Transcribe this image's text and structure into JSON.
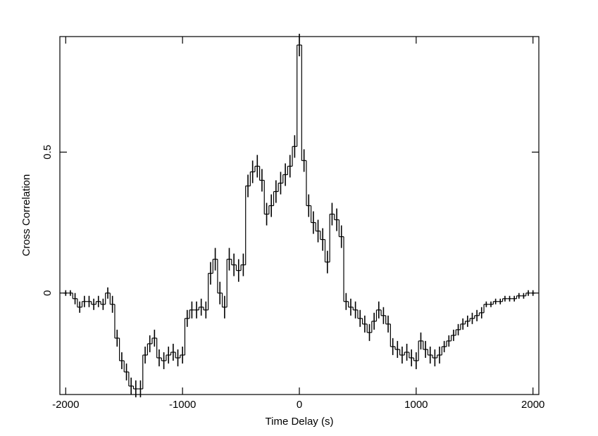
{
  "chart_data": {
    "type": "step",
    "xlabel": "Time Delay (s)",
    "ylabel": "Cross Correlation",
    "xlim": [
      -2050,
      2050
    ],
    "ylim": [
      -0.36,
      0.91
    ],
    "xticks": [
      -2000,
      -1000,
      0,
      1000,
      2000
    ],
    "yticks": [
      0,
      0.5
    ],
    "color": "#000000",
    "x": [
      -2000,
      -1960,
      -1920,
      -1880,
      -1840,
      -1800,
      -1760,
      -1720,
      -1680,
      -1640,
      -1600,
      -1560,
      -1520,
      -1480,
      -1440,
      -1400,
      -1360,
      -1320,
      -1280,
      -1240,
      -1200,
      -1160,
      -1120,
      -1080,
      -1040,
      -1000,
      -960,
      -920,
      -880,
      -840,
      -800,
      -760,
      -720,
      -680,
      -640,
      -600,
      -560,
      -520,
      -480,
      -440,
      -400,
      -360,
      -320,
      -280,
      -240,
      -200,
      -160,
      -120,
      -80,
      -40,
      0,
      40,
      80,
      120,
      160,
      200,
      240,
      280,
      320,
      360,
      400,
      440,
      480,
      520,
      560,
      600,
      640,
      680,
      720,
      760,
      800,
      840,
      880,
      920,
      960,
      1000,
      1040,
      1080,
      1120,
      1160,
      1200,
      1240,
      1280,
      1320,
      1360,
      1400,
      1440,
      1480,
      1520,
      1560,
      1600,
      1640,
      1680,
      1720,
      1760,
      1800,
      1840,
      1880,
      1920,
      1960,
      2000
    ],
    "values": [
      0.0,
      0.0,
      -0.02,
      -0.05,
      -0.03,
      -0.03,
      -0.04,
      -0.03,
      -0.04,
      0.0,
      -0.04,
      -0.16,
      -0.24,
      -0.28,
      -0.33,
      -0.34,
      -0.34,
      -0.22,
      -0.18,
      -0.16,
      -0.23,
      -0.24,
      -0.22,
      -0.21,
      -0.23,
      -0.22,
      -0.09,
      -0.06,
      -0.06,
      -0.05,
      -0.06,
      0.07,
      0.12,
      0.0,
      -0.05,
      0.12,
      0.1,
      0.08,
      0.1,
      0.38,
      0.43,
      0.45,
      0.4,
      0.28,
      0.31,
      0.36,
      0.39,
      0.42,
      0.45,
      0.52,
      0.88,
      0.47,
      0.31,
      0.25,
      0.22,
      0.19,
      0.11,
      0.28,
      0.26,
      0.2,
      -0.03,
      -0.05,
      -0.06,
      -0.09,
      -0.11,
      -0.14,
      -0.1,
      -0.06,
      -0.08,
      -0.11,
      -0.19,
      -0.2,
      -0.22,
      -0.21,
      -0.23,
      -0.24,
      -0.17,
      -0.2,
      -0.22,
      -0.23,
      -0.22,
      -0.19,
      -0.17,
      -0.15,
      -0.13,
      -0.11,
      -0.1,
      -0.09,
      -0.08,
      -0.07,
      -0.04,
      -0.04,
      -0.03,
      -0.03,
      -0.02,
      -0.02,
      -0.02,
      -0.01,
      -0.01,
      0.0,
      0.0
    ],
    "errors": [
      0.01,
      0.01,
      0.02,
      0.02,
      0.02,
      0.02,
      0.02,
      0.02,
      0.02,
      0.02,
      0.03,
      0.03,
      0.03,
      0.03,
      0.03,
      0.03,
      0.03,
      0.03,
      0.03,
      0.03,
      0.03,
      0.03,
      0.03,
      0.03,
      0.03,
      0.03,
      0.03,
      0.03,
      0.03,
      0.03,
      0.03,
      0.04,
      0.04,
      0.04,
      0.04,
      0.04,
      0.04,
      0.04,
      0.04,
      0.04,
      0.04,
      0.04,
      0.04,
      0.04,
      0.04,
      0.04,
      0.04,
      0.04,
      0.04,
      0.04,
      0.04,
      0.04,
      0.04,
      0.04,
      0.04,
      0.04,
      0.04,
      0.04,
      0.04,
      0.04,
      0.03,
      0.03,
      0.03,
      0.03,
      0.03,
      0.03,
      0.03,
      0.03,
      0.03,
      0.03,
      0.03,
      0.03,
      0.03,
      0.03,
      0.03,
      0.03,
      0.03,
      0.03,
      0.03,
      0.03,
      0.03,
      0.02,
      0.02,
      0.02,
      0.02,
      0.02,
      0.02,
      0.02,
      0.02,
      0.02,
      0.01,
      0.01,
      0.01,
      0.01,
      0.01,
      0.01,
      0.01,
      0.01,
      0.01,
      0.01,
      0.01
    ]
  }
}
